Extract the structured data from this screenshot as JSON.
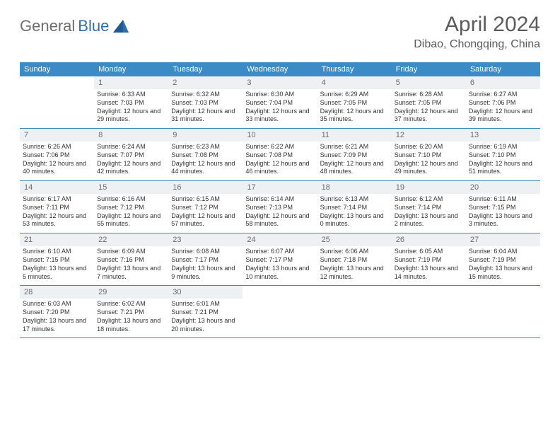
{
  "colors": {
    "header_bg": "#3b8bc7",
    "header_text": "#ffffff",
    "daynum_bg": "#eef1f3",
    "daynum_text": "#6b6b6b",
    "body_text": "#333333",
    "title_text": "#5b5b5b",
    "logo_gray": "#6d6d6d",
    "logo_blue": "#2f6fb0",
    "rule": "#3b8bc7",
    "page_bg": "#ffffff"
  },
  "typography": {
    "title_fontsize_pt": 22,
    "location_fontsize_pt": 12,
    "weekday_fontsize_pt": 8,
    "daynum_fontsize_pt": 8,
    "cell_fontsize_pt": 7,
    "font_family": "Arial"
  },
  "logo": {
    "part1": "General",
    "part2": "Blue"
  },
  "title": "April 2024",
  "location": "Dibao, Chongqing, China",
  "weekdays": [
    "Sunday",
    "Monday",
    "Tuesday",
    "Wednesday",
    "Thursday",
    "Friday",
    "Saturday"
  ],
  "weeks": [
    {
      "nums": [
        "",
        "1",
        "2",
        "3",
        "4",
        "5",
        "6"
      ],
      "cells": [
        "",
        "Sunrise: 6:33 AM\nSunset: 7:03 PM\nDaylight: 12 hours and 29 minutes.",
        "Sunrise: 6:32 AM\nSunset: 7:03 PM\nDaylight: 12 hours and 31 minutes.",
        "Sunrise: 6:30 AM\nSunset: 7:04 PM\nDaylight: 12 hours and 33 minutes.",
        "Sunrise: 6:29 AM\nSunset: 7:05 PM\nDaylight: 12 hours and 35 minutes.",
        "Sunrise: 6:28 AM\nSunset: 7:05 PM\nDaylight: 12 hours and 37 minutes.",
        "Sunrise: 6:27 AM\nSunset: 7:06 PM\nDaylight: 12 hours and 39 minutes."
      ]
    },
    {
      "nums": [
        "7",
        "8",
        "9",
        "10",
        "11",
        "12",
        "13"
      ],
      "cells": [
        "Sunrise: 6:26 AM\nSunset: 7:06 PM\nDaylight: 12 hours and 40 minutes.",
        "Sunrise: 6:24 AM\nSunset: 7:07 PM\nDaylight: 12 hours and 42 minutes.",
        "Sunrise: 6:23 AM\nSunset: 7:08 PM\nDaylight: 12 hours and 44 minutes.",
        "Sunrise: 6:22 AM\nSunset: 7:08 PM\nDaylight: 12 hours and 46 minutes.",
        "Sunrise: 6:21 AM\nSunset: 7:09 PM\nDaylight: 12 hours and 48 minutes.",
        "Sunrise: 6:20 AM\nSunset: 7:10 PM\nDaylight: 12 hours and 49 minutes.",
        "Sunrise: 6:19 AM\nSunset: 7:10 PM\nDaylight: 12 hours and 51 minutes."
      ]
    },
    {
      "nums": [
        "14",
        "15",
        "16",
        "17",
        "18",
        "19",
        "20"
      ],
      "cells": [
        "Sunrise: 6:17 AM\nSunset: 7:11 PM\nDaylight: 12 hours and 53 minutes.",
        "Sunrise: 6:16 AM\nSunset: 7:12 PM\nDaylight: 12 hours and 55 minutes.",
        "Sunrise: 6:15 AM\nSunset: 7:12 PM\nDaylight: 12 hours and 57 minutes.",
        "Sunrise: 6:14 AM\nSunset: 7:13 PM\nDaylight: 12 hours and 58 minutes.",
        "Sunrise: 6:13 AM\nSunset: 7:14 PM\nDaylight: 13 hours and 0 minutes.",
        "Sunrise: 6:12 AM\nSunset: 7:14 PM\nDaylight: 13 hours and 2 minutes.",
        "Sunrise: 6:11 AM\nSunset: 7:15 PM\nDaylight: 13 hours and 3 minutes."
      ]
    },
    {
      "nums": [
        "21",
        "22",
        "23",
        "24",
        "25",
        "26",
        "27"
      ],
      "cells": [
        "Sunrise: 6:10 AM\nSunset: 7:15 PM\nDaylight: 13 hours and 5 minutes.",
        "Sunrise: 6:09 AM\nSunset: 7:16 PM\nDaylight: 13 hours and 7 minutes.",
        "Sunrise: 6:08 AM\nSunset: 7:17 PM\nDaylight: 13 hours and 9 minutes.",
        "Sunrise: 6:07 AM\nSunset: 7:17 PM\nDaylight: 13 hours and 10 minutes.",
        "Sunrise: 6:06 AM\nSunset: 7:18 PM\nDaylight: 13 hours and 12 minutes.",
        "Sunrise: 6:05 AM\nSunset: 7:19 PM\nDaylight: 13 hours and 14 minutes.",
        "Sunrise: 6:04 AM\nSunset: 7:19 PM\nDaylight: 13 hours and 15 minutes."
      ]
    },
    {
      "nums": [
        "28",
        "29",
        "30",
        "",
        "",
        "",
        ""
      ],
      "cells": [
        "Sunrise: 6:03 AM\nSunset: 7:20 PM\nDaylight: 13 hours and 17 minutes.",
        "Sunrise: 6:02 AM\nSunset: 7:21 PM\nDaylight: 13 hours and 18 minutes.",
        "Sunrise: 6:01 AM\nSunset: 7:21 PM\nDaylight: 13 hours and 20 minutes.",
        "",
        "",
        "",
        ""
      ]
    }
  ]
}
